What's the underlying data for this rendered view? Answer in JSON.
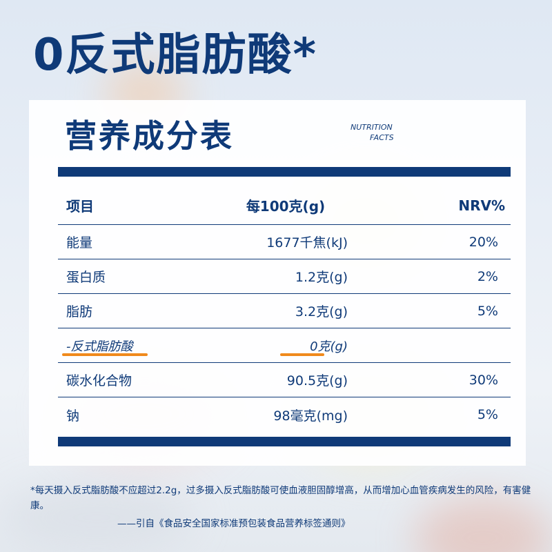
{
  "title": "0反式脂肪酸*",
  "card": {
    "title": "营养成分表",
    "subtitle_line1": "NUTRITION",
    "subtitle_line2": "FACTS"
  },
  "table": {
    "headers": [
      "项目",
      "每100克(g)",
      "NRV%"
    ],
    "rows": [
      {
        "item": "能量",
        "amount": "1677千焦(kJ)",
        "nrv": "20%"
      },
      {
        "item": "蛋白质",
        "amount": "1.2克(g)",
        "nrv": "2%"
      },
      {
        "item": "脂肪",
        "amount": "3.2克(g)",
        "nrv": "5%"
      },
      {
        "item": "-反式脂肪酸",
        "amount": "0克(g)",
        "nrv": ""
      },
      {
        "item": "碳水化合物",
        "amount": "90.5克(g)",
        "nrv": "30%"
      },
      {
        "item": "钠",
        "amount": "98毫克(mg)",
        "nrv": "5%"
      }
    ]
  },
  "footnote": "*每天摄入反式脂肪酸不应超过2.2g，过多摄入反式脂肪酸可使血液胆固醇增高，从而增加心血管疾病发生的风险，有害健康。",
  "citation": "——引自《食品安全国家标准预包装食品营养标签通则》",
  "colors": {
    "primary": "#0f3a78",
    "highlight": "#f08a1c"
  }
}
